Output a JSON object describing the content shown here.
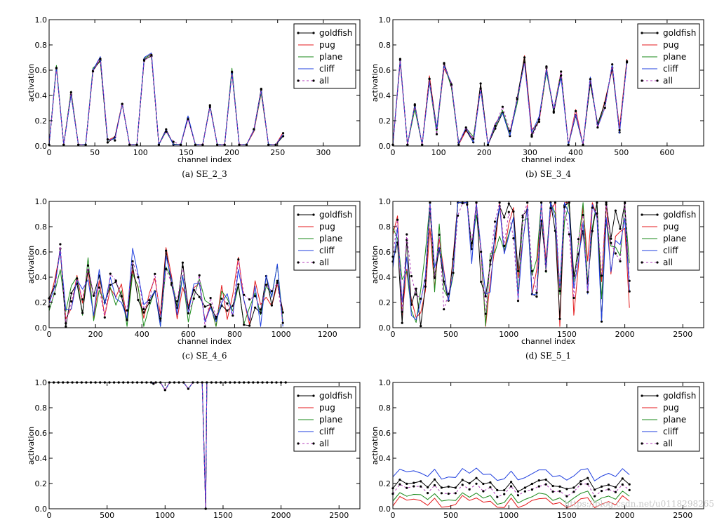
{
  "chart_data": [
    {
      "type": "line",
      "caption": "(a) SE_2_3",
      "xlabel": "channel index",
      "ylabel": "activation",
      "xlim": [
        0,
        340
      ],
      "ylim": [
        0,
        1.0
      ],
      "xticks": [
        0,
        50,
        100,
        150,
        200,
        250,
        300
      ],
      "yticks": [
        0.0,
        0.2,
        0.4,
        0.6,
        0.8,
        1.0
      ],
      "xtick_labels": [
        "0",
        "50",
        "100",
        "150",
        "200",
        "250",
        "300"
      ],
      "ytick_labels": [
        "0.0",
        "0.2",
        "0.4",
        "0.6",
        "0.8",
        "1.0"
      ],
      "legend": [
        "goldfish",
        "pug",
        "plane",
        "cliff",
        "all"
      ],
      "n_channels": 256,
      "sample_step": 8,
      "base": 0.22,
      "amp": 0.32,
      "noise": 0.02,
      "seed": 3
    },
    {
      "type": "line",
      "caption": "(b) SE_3_4",
      "xlabel": "channel index",
      "ylabel": "activation",
      "xlim": [
        0,
        680
      ],
      "ylim": [
        0,
        1.0
      ],
      "xticks": [
        0,
        100,
        200,
        300,
        400,
        500,
        600
      ],
      "yticks": [
        0.0,
        0.2,
        0.4,
        0.6,
        0.8,
        1.0
      ],
      "xtick_labels": [
        "0",
        "100",
        "200",
        "300",
        "400",
        "500",
        "600"
      ],
      "ytick_labels": [
        "0.0",
        "0.2",
        "0.4",
        "0.6",
        "0.8",
        "1.0"
      ],
      "legend": [
        "goldfish",
        "pug",
        "plane",
        "cliff",
        "all"
      ],
      "n_channels": 512,
      "sample_step": 16,
      "base": 0.33,
      "amp": 0.24,
      "noise": 0.03,
      "seed": 7
    },
    {
      "type": "line",
      "caption": "(c) SE_4_6",
      "xlabel": "channel index",
      "ylabel": "activation",
      "xlim": [
        0,
        1340
      ],
      "ylim": [
        0,
        1.0
      ],
      "xticks": [
        0,
        200,
        400,
        600,
        800,
        1000,
        1200
      ],
      "yticks": [
        0.0,
        0.2,
        0.4,
        0.6,
        0.8,
        1.0
      ],
      "xtick_labels": [
        "0",
        "200",
        "400",
        "600",
        "800",
        "1000",
        "1200"
      ],
      "ytick_labels": [
        "0.0",
        "0.2",
        "0.4",
        "0.6",
        "0.8",
        "1.0"
      ],
      "legend": [
        "goldfish",
        "pug",
        "plane",
        "cliff",
        "all"
      ],
      "n_channels": 1024,
      "sample_step": 24,
      "base": 0.3,
      "amp": 0.18,
      "noise": 0.12,
      "seed": 11
    },
    {
      "type": "line",
      "caption": "(d) SE_5_1",
      "xlabel": "channel index",
      "ylabel": "activation",
      "xlim": [
        0,
        2680
      ],
      "ylim": [
        0,
        1.0
      ],
      "xticks": [
        0,
        500,
        1000,
        1500,
        2000,
        2500
      ],
      "yticks": [
        0.0,
        0.2,
        0.4,
        0.6,
        0.8,
        1.0
      ],
      "xtick_labels": [
        "0",
        "500",
        "1000",
        "1500",
        "2000",
        "2500"
      ],
      "ytick_labels": [
        "0.0",
        "0.2",
        "0.4",
        "0.6",
        "0.8",
        "1.0"
      ],
      "legend": [
        "goldfish",
        "pug",
        "plane",
        "cliff",
        "all"
      ],
      "n_channels": 2048,
      "sample_step": 40,
      "base": 0.62,
      "amp": 0.32,
      "noise": 0.2,
      "seed": 19
    },
    {
      "type": "line",
      "caption": "",
      "xlabel": "",
      "ylabel": "activation",
      "xlim": [
        0,
        2680
      ],
      "ylim": [
        0,
        1.0
      ],
      "xticks": [
        0,
        500,
        1000,
        1500,
        2000,
        2500
      ],
      "yticks": [
        0.0,
        0.2,
        0.4,
        0.6,
        0.8,
        1.0
      ],
      "xtick_labels": [
        "0",
        "500",
        "1000",
        "1500",
        "2000",
        "2500"
      ],
      "ytick_labels": [
        "0.0",
        "0.2",
        "0.4",
        "0.6",
        "0.8",
        "1.0"
      ],
      "legend": [
        "goldfish",
        "pug",
        "plane",
        "cliff",
        "all"
      ],
      "n_channels": 2048,
      "sample_step": 40,
      "saturated": true,
      "dips": [
        {
          "x": 900,
          "y": 0.99
        },
        {
          "x": 1000,
          "y": 0.94
        },
        {
          "x": 1200,
          "y": 0.95
        },
        {
          "x": 1350,
          "y": 0.0
        }
      ],
      "seed": 23
    },
    {
      "type": "line",
      "caption": "",
      "xlabel": "",
      "ylabel": "activation",
      "xlim": [
        0,
        2680
      ],
      "ylim": [
        0,
        1.0
      ],
      "xticks": [
        0,
        500,
        1000,
        1500,
        2000,
        2500
      ],
      "yticks": [
        0.0,
        0.2,
        0.4,
        0.6,
        0.8,
        1.0
      ],
      "xtick_labels": [
        "0",
        "500",
        "1000",
        "1500",
        "2000",
        "2500"
      ],
      "ytick_labels": [
        "0.0",
        "0.2",
        "0.4",
        "0.6",
        "0.8",
        "1.0"
      ],
      "legend": [
        "goldfish",
        "pug",
        "plane",
        "cliff",
        "all"
      ],
      "n_channels": 2048,
      "sample_step": 60,
      "band_levels": {
        "goldfish": 0.19,
        "pug": 0.05,
        "plane": 0.09,
        "cliff": 0.27,
        "all": 0.15
      },
      "band_amp": 0.05,
      "seed": 29
    }
  ],
  "series_colors": {
    "goldfish": "#000000",
    "pug": "#e41a1c",
    "plane": "#1a8a1a",
    "cliff": "#1f3fdf",
    "all": "#000000"
  },
  "watermark": "https://blog.csdn.net/u0118298265"
}
